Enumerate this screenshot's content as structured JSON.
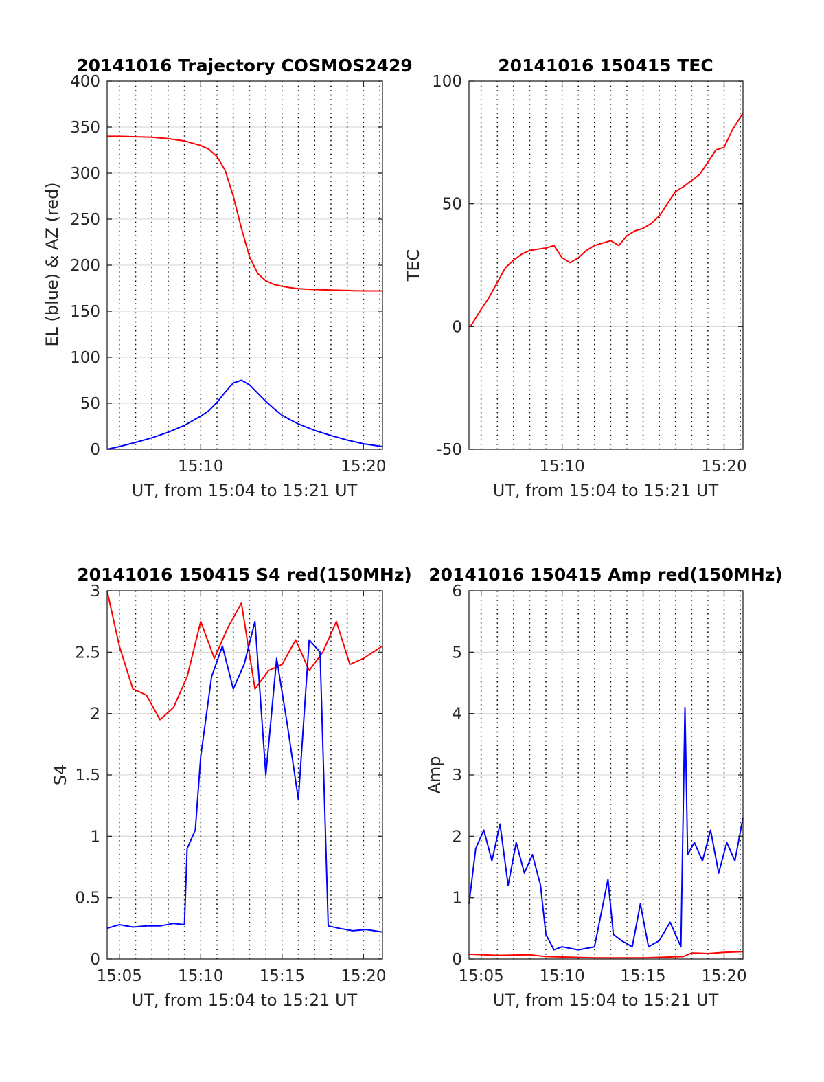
{
  "figure": {
    "background": "#ffffff"
  },
  "colors": {
    "red": "#ff0000",
    "blue": "#0000ff",
    "grid": "#dcdcdc",
    "minor_grid": "#000000"
  },
  "chart_data": [
    {
      "type": "line",
      "title": "20141016 Trajectory COSMOS2429",
      "xlabel": "UT, from 15:04 to 15:21 UT",
      "ylabel": "EL (blue) & AZ (red)",
      "xlim": [
        "15:04:15",
        "15:21:10"
      ],
      "ylim": [
        0,
        400
      ],
      "xticks": [
        {
          "t": "15:10",
          "label": "15:10"
        },
        {
          "t": "15:20",
          "label": "15:20"
        }
      ],
      "yticks": [
        {
          "v": 0,
          "label": "0"
        },
        {
          "v": 50,
          "label": "50"
        },
        {
          "v": 100,
          "label": "100"
        },
        {
          "v": 150,
          "label": "150"
        },
        {
          "v": 200,
          "label": "200"
        },
        {
          "v": 250,
          "label": "250"
        },
        {
          "v": 300,
          "label": "300"
        },
        {
          "v": 350,
          "label": "350"
        },
        {
          "v": 400,
          "label": "400"
        }
      ],
      "minor_xgrid": [
        "15:05",
        "15:06",
        "15:07",
        "15:08",
        "15:09",
        "15:10",
        "15:11",
        "15:12",
        "15:13",
        "15:14",
        "15:15",
        "15:16",
        "15:17",
        "15:18",
        "15:19",
        "15:20",
        "15:21"
      ],
      "grid": true,
      "series": [
        {
          "color": "#ff0000",
          "x": [
            "15:04:15",
            "15:05:00",
            "15:06:00",
            "15:07:00",
            "15:08:00",
            "15:09:00",
            "15:10:00",
            "15:10:30",
            "15:11:00",
            "15:11:30",
            "15:12:00",
            "15:12:30",
            "15:13:00",
            "15:13:30",
            "15:14:00",
            "15:14:30",
            "15:15:00",
            "15:15:30",
            "15:16:00",
            "15:17:00",
            "15:18:00",
            "15:19:00",
            "15:20:00",
            "15:21:10"
          ],
          "values": [
            340,
            340,
            339.5,
            339,
            337.5,
            335,
            330,
            326,
            318,
            303,
            275,
            240,
            209,
            191,
            183,
            179,
            177,
            175.5,
            174.5,
            173.5,
            173,
            172.5,
            172,
            172
          ]
        },
        {
          "color": "#0000ff",
          "x": [
            "15:04:15",
            "15:05:00",
            "15:06:00",
            "15:07:00",
            "15:08:00",
            "15:09:00",
            "15:10:00",
            "15:10:30",
            "15:11:00",
            "15:11:30",
            "15:12:00",
            "15:12:30",
            "15:13:00",
            "15:13:30",
            "15:14:00",
            "15:14:30",
            "15:15:00",
            "15:15:30",
            "15:16:00",
            "15:17:00",
            "15:18:00",
            "15:19:00",
            "15:20:00",
            "15:21:10"
          ],
          "values": [
            0,
            3,
            7.5,
            12.5,
            18.5,
            26,
            36,
            42,
            51,
            62,
            72,
            75,
            70,
            61,
            52,
            44,
            37,
            32,
            27.5,
            20.5,
            15,
            10,
            6,
            3
          ]
        }
      ]
    },
    {
      "type": "line",
      "title": "20141016 150415 TEC",
      "xlabel": "UT, from 15:04 to 15:21 UT",
      "ylabel": "TEC",
      "xlim": [
        "15:04:15",
        "15:21:10"
      ],
      "ylim": [
        -50,
        100
      ],
      "xticks": [
        {
          "t": "15:10",
          "label": "15:10"
        },
        {
          "t": "15:20",
          "label": "15:20"
        }
      ],
      "yticks": [
        {
          "v": -50,
          "label": "-50"
        },
        {
          "v": 0,
          "label": "0"
        },
        {
          "v": 50,
          "label": "50"
        },
        {
          "v": 100,
          "label": "100"
        }
      ],
      "minor_xgrid": [
        "15:05",
        "15:06",
        "15:07",
        "15:08",
        "15:09",
        "15:10",
        "15:11",
        "15:12",
        "15:13",
        "15:14",
        "15:15",
        "15:16",
        "15:17",
        "15:18",
        "15:19",
        "15:20",
        "15:21"
      ],
      "grid": true,
      "series": [
        {
          "color": "#ff0000",
          "x": [
            "15:04:20",
            "15:05:00",
            "15:05:30",
            "15:06:00",
            "15:06:30",
            "15:07:00",
            "15:07:30",
            "15:08:00",
            "15:08:30",
            "15:09:00",
            "15:09:30",
            "15:10:00",
            "15:10:30",
            "15:11:00",
            "15:11:30",
            "15:12:00",
            "15:12:30",
            "15:13:00",
            "15:13:30",
            "15:14:00",
            "15:14:30",
            "15:15:00",
            "15:15:30",
            "15:16:00",
            "15:16:30",
            "15:17:00",
            "15:17:30",
            "15:18:00",
            "15:18:30",
            "15:19:00",
            "15:19:30",
            "15:20:00",
            "15:20:30",
            "15:21:10"
          ],
          "values": [
            0,
            7,
            12,
            18,
            24,
            27,
            29.5,
            31,
            31.5,
            32,
            33,
            28,
            26,
            28,
            31,
            33,
            34,
            35,
            33,
            37,
            39,
            40,
            42,
            45,
            50,
            55,
            57,
            59.5,
            62,
            67,
            72,
            73,
            80,
            87
          ]
        }
      ]
    },
    {
      "type": "line",
      "title": "20141016 150415 S4 red(150MHz)",
      "xlabel": "UT, from 15:04 to 15:21 UT",
      "ylabel": "S4",
      "xlim": [
        "15:04:15",
        "15:21:10"
      ],
      "ylim": [
        0,
        3
      ],
      "xticks": [
        {
          "t": "15:05",
          "label": "15:05"
        },
        {
          "t": "15:10",
          "label": "15:10"
        },
        {
          "t": "15:15",
          "label": "15:15"
        },
        {
          "t": "15:20",
          "label": "15:20"
        }
      ],
      "yticks": [
        {
          "v": 0,
          "label": "0"
        },
        {
          "v": 0.5,
          "label": "0.5"
        },
        {
          "v": 1,
          "label": "1"
        },
        {
          "v": 1.5,
          "label": "1.5"
        },
        {
          "v": 2,
          "label": "2"
        },
        {
          "v": 2.5,
          "label": "2.5"
        },
        {
          "v": 3,
          "label": "3"
        }
      ],
      "minor_xgrid": [
        "15:05",
        "15:06",
        "15:07",
        "15:08",
        "15:09",
        "15:10",
        "15:11",
        "15:12",
        "15:13",
        "15:14",
        "15:15",
        "15:16",
        "15:17",
        "15:18",
        "15:19",
        "15:20",
        "15:21"
      ],
      "grid": true,
      "series": [
        {
          "color": "#ff0000",
          "x": [
            "15:04:15",
            "15:05:00",
            "15:05:50",
            "15:06:40",
            "15:07:30",
            "15:08:20",
            "15:09:10",
            "15:10:00",
            "15:10:50",
            "15:11:40",
            "15:12:30",
            "15:13:20",
            "15:14:10",
            "15:15:00",
            "15:15:50",
            "15:16:40",
            "15:17:30",
            "15:18:20",
            "15:19:10",
            "15:20:00",
            "15:21:10"
          ],
          "values": [
            3,
            2.55,
            2.2,
            2.15,
            1.95,
            2.05,
            2.3,
            2.75,
            2.45,
            2.7,
            2.9,
            2.2,
            2.35,
            2.4,
            2.6,
            2.35,
            2.5,
            2.75,
            2.4,
            2.45,
            2.55
          ]
        },
        {
          "color": "#0000ff",
          "x": [
            "15:04:15",
            "15:05:00",
            "15:05:50",
            "15:06:40",
            "15:07:30",
            "15:08:20",
            "15:09:00",
            "15:09:10",
            "15:09:40",
            "15:10:00",
            "15:10:40",
            "15:11:20",
            "15:12:00",
            "15:12:40",
            "15:13:20",
            "15:14:00",
            "15:14:40",
            "15:15:20",
            "15:16:00",
            "15:16:40",
            "15:17:20",
            "15:17:50",
            "15:18:30",
            "15:19:20",
            "15:20:10",
            "15:21:10"
          ],
          "values": [
            0.25,
            0.28,
            0.26,
            0.27,
            0.27,
            0.29,
            0.28,
            0.9,
            1.05,
            1.65,
            2.3,
            2.55,
            2.2,
            2.4,
            2.75,
            1.5,
            2.45,
            1.9,
            1.3,
            2.6,
            2.5,
            0.27,
            0.25,
            0.23,
            0.24,
            0.22
          ]
        }
      ]
    },
    {
      "type": "line",
      "title": "20141016 150415 Amp red(150MHz)",
      "xlabel": "UT, from 15:04 to 15:21 UT",
      "ylabel": "Amp",
      "xlim": [
        "15:04:15",
        "15:21:10"
      ],
      "ylim": [
        0,
        6
      ],
      "xticks": [
        {
          "t": "15:05",
          "label": "15:05"
        },
        {
          "t": "15:10",
          "label": "15:10"
        },
        {
          "t": "15:15",
          "label": "15:15"
        },
        {
          "t": "15:20",
          "label": "15:20"
        }
      ],
      "yticks": [
        {
          "v": 0,
          "label": "0"
        },
        {
          "v": 1,
          "label": "1"
        },
        {
          "v": 2,
          "label": "2"
        },
        {
          "v": 3,
          "label": "3"
        },
        {
          "v": 4,
          "label": "4"
        },
        {
          "v": 5,
          "label": "5"
        },
        {
          "v": 6,
          "label": "6"
        }
      ],
      "minor_xgrid": [
        "15:05",
        "15:06",
        "15:07",
        "15:08",
        "15:09",
        "15:10",
        "15:11",
        "15:12",
        "15:13",
        "15:14",
        "15:15",
        "15:16",
        "15:17",
        "15:18",
        "15:19",
        "15:20",
        "15:21"
      ],
      "grid": true,
      "series": [
        {
          "color": "#0000ff",
          "x": [
            "15:04:15",
            "15:04:40",
            "15:05:10",
            "15:05:40",
            "15:06:10",
            "15:06:40",
            "15:07:10",
            "15:07:40",
            "15:08:10",
            "15:08:40",
            "15:09:00",
            "15:09:30",
            "15:10:00",
            "15:11:00",
            "15:12:00",
            "15:12:50",
            "15:13:10",
            "15:13:40",
            "15:14:20",
            "15:14:50",
            "15:15:20",
            "15:16:00",
            "15:16:40",
            "15:17:20",
            "15:17:35",
            "15:17:45",
            "15:18:10",
            "15:18:40",
            "15:19:10",
            "15:19:40",
            "15:20:10",
            "15:20:40",
            "15:21:10"
          ],
          "values": [
            0.9,
            1.8,
            2.1,
            1.6,
            2.2,
            1.2,
            1.9,
            1.4,
            1.7,
            1.2,
            0.4,
            0.15,
            0.2,
            0.15,
            0.2,
            1.3,
            0.4,
            0.3,
            0.2,
            0.9,
            0.2,
            0.3,
            0.6,
            0.2,
            4.1,
            1.7,
            1.9,
            1.6,
            2.1,
            1.4,
            1.9,
            1.6,
            2.3
          ]
        },
        {
          "color": "#ff0000",
          "x": [
            "15:04:15",
            "15:06:00",
            "15:08:00",
            "15:09:00",
            "15:12:00",
            "15:15:00",
            "15:17:30",
            "15:18:00",
            "15:19:00",
            "15:20:00",
            "15:21:10"
          ],
          "values": [
            0.08,
            0.06,
            0.07,
            0.04,
            0.02,
            0.02,
            0.04,
            0.1,
            0.09,
            0.11,
            0.12
          ]
        }
      ]
    }
  ]
}
